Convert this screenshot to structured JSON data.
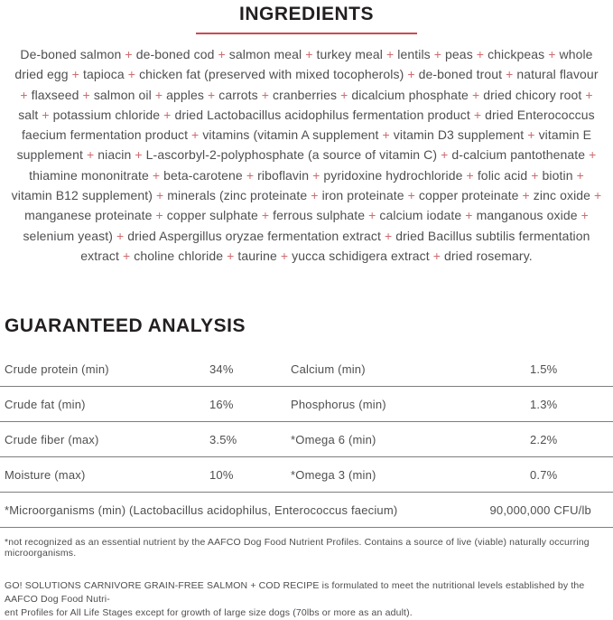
{
  "colors": {
    "heading_text": "#231f20",
    "body_text": "#4f4f51",
    "accent_red_rule": "#c94b55",
    "plus_sign_red": "#cf6b6e",
    "divider_gray": "#7e7e7e"
  },
  "ingredients_section": {
    "title": "INGREDIENTS",
    "separator": "+",
    "items": [
      "De-boned salmon",
      "de-boned cod",
      "salmon meal",
      "turkey meal",
      "lentils",
      "peas",
      "chickpeas",
      "whole dried egg",
      "tapioca",
      "chicken fat (preserved with mixed tocopherols)",
      "de-boned trout",
      "natural flavour",
      "flaxseed",
      "salmon oil",
      "apples",
      "carrots",
      "cranberries",
      "dicalcium phosphate",
      "dried chicory root",
      "salt",
      "potassium chloride",
      "dried Lactobacillus acidophilus fermentation product",
      "dried Enterococcus faecium fermentation product",
      "vitamins (vitamin A supplement",
      "vitamin D3 supplement",
      "vitamin E supplement",
      "niacin",
      "L-ascorbyl-2-polyphosphate (a source of vitamin C)",
      "d-calcium pantothenate",
      "thiamine mononitrate",
      "beta-carotene",
      "riboflavin",
      "pyridoxine hydrochloride",
      "folic acid",
      "biotin",
      "vitamin B12 supplement)",
      "minerals (zinc proteinate",
      "iron proteinate",
      "copper proteinate",
      "zinc oxide",
      "manganese proteinate",
      "copper sulphate",
      "ferrous sulphate",
      "calcium iodate",
      "manganous oxide",
      "selenium yeast)",
      "dried Aspergillus oryzae fermentation extract",
      "dried Bacillus subtilis fermentation extract",
      "choline chloride",
      "taurine",
      "yucca schidigera extract",
      "dried rosemary."
    ]
  },
  "analysis_section": {
    "title": "GUARANTEED ANALYSIS",
    "rows": [
      {
        "label1": "Crude protein (min)",
        "value1": "34%",
        "label2": "Calcium (min)",
        "value2": "1.5%"
      },
      {
        "label1": "Crude fat (min)",
        "value1": "16%",
        "label2": "Phosphorus (min)",
        "value2": "1.3%"
      },
      {
        "label1": "Crude fiber (max)",
        "value1": "3.5%",
        "label2": "*Omega 6 (min)",
        "value2": "2.2%"
      },
      {
        "label1": "Moisture (max)",
        "value1": "10%",
        "label2": "*Omega 3 (min)",
        "value2": "0.7%"
      }
    ],
    "microorganisms": {
      "label": "*Microorganisms (min) (Lactobacillus acidophilus, Enterococcus faecium)",
      "value": "90,000,000 CFU/lb"
    }
  },
  "footnotes": {
    "note1": "*not recognized as an essential nutrient by the AAFCO Dog Food Nutrient Profiles. Contains a source of live (viable) naturally occurring microorganisms.",
    "note2_line1": "GO! SOLUTIONS CARNIVORE GRAIN-FREE SALMON + COD RECIPE  is formulated to meet the nutritional levels established by the AAFCO Dog Food Nutri-",
    "note2_line2": "ent Profiles for All Life Stages except for growth of large size dogs (70lbs or more as an adult)."
  }
}
